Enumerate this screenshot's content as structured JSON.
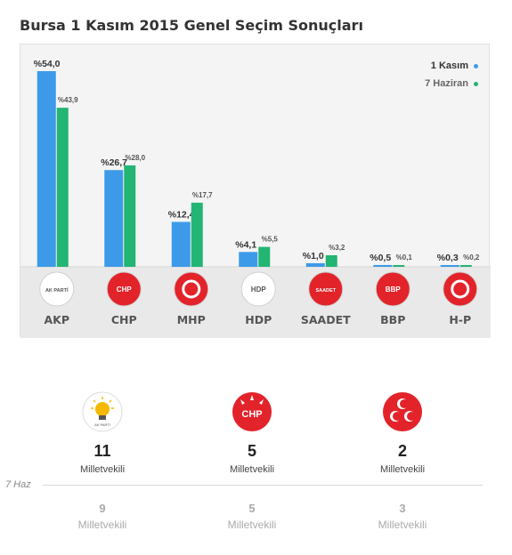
{
  "title": "Bursa 1 Kasım 2015 Genel Seçim Sonuçları",
  "legend": [
    {
      "label": "1 Kasım",
      "color": "#3d9ae8"
    },
    {
      "label": "7 Haziran",
      "color": "#22b573"
    }
  ],
  "chart_data": {
    "type": "bar",
    "categories": [
      "AKP",
      "CHP",
      "MHP",
      "HDP",
      "SAADET",
      "BBP",
      "H-P"
    ],
    "series": [
      {
        "name": "1 Kasım",
        "values": [
          54.0,
          26.7,
          12.4,
          4.1,
          1.0,
          0.5,
          0.3
        ],
        "labels": [
          "%54,0",
          "%26,7",
          "%12,4",
          "%4,1",
          "%1,0",
          "%0,5",
          "%0,3"
        ]
      },
      {
        "name": "7 Haziran",
        "values": [
          43.9,
          28.0,
          17.7,
          5.5,
          3.2,
          0.1,
          0.2
        ],
        "labels": [
          "%43,9",
          "%28,0",
          "%17,7",
          "%5,5",
          "%3,2",
          "%0,1",
          "%0,2"
        ]
      }
    ],
    "ylim": [
      0,
      54
    ]
  },
  "logos": [
    {
      "party": "AKP",
      "icon": "akp-bulb-logo",
      "bg": "#ffffff",
      "text": "AK PARTİ"
    },
    {
      "party": "CHP",
      "icon": "chp-six-arrows-logo",
      "bg": "#e3232a",
      "text": "CHP"
    },
    {
      "party": "MHP",
      "icon": "mhp-crescents-logo",
      "bg": "#e3232a",
      "text": ""
    },
    {
      "party": "HDP",
      "icon": "hdp-tree-logo",
      "bg": "#ffffff",
      "text": "HDP"
    },
    {
      "party": "SAADET",
      "icon": "saadet-logo",
      "bg": "#e3232a",
      "text": "SAADET"
    },
    {
      "party": "BBP",
      "icon": "bbp-logo",
      "bg": "#e3232a",
      "text": "BBP"
    },
    {
      "party": "H-P",
      "icon": "hp-logo",
      "bg": "#e3232a",
      "text": ""
    }
  ],
  "seats": {
    "compare_label": "7 Haz",
    "items": [
      {
        "party": "AKP",
        "icon": "akp-bulb-logo",
        "current": "11",
        "current_label": "Milletvekili",
        "previous": "9",
        "previous_label": "Milletvekili"
      },
      {
        "party": "CHP",
        "icon": "chp-six-arrows-logo",
        "current": "5",
        "current_label": "Milletvekili",
        "previous": "5",
        "previous_label": "Milletvekili"
      },
      {
        "party": "MHP",
        "icon": "mhp-crescents-logo",
        "current": "2",
        "current_label": "Milletvekili",
        "previous": "3",
        "previous_label": "Milletvekili"
      }
    ]
  }
}
